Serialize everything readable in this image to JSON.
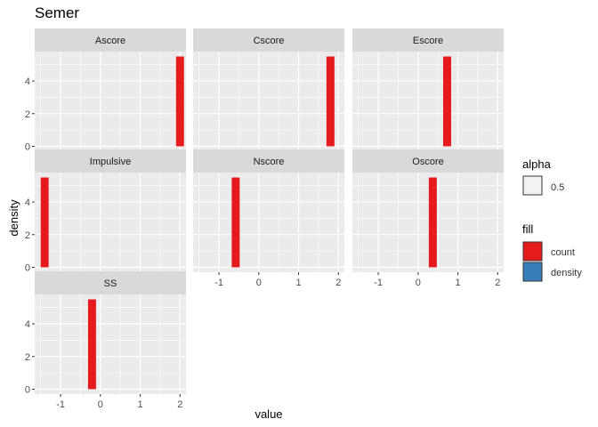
{
  "chart_data": {
    "type": "bar",
    "title": "Semer",
    "xlabel": "value",
    "ylabel": "density",
    "xlim": [
      -1.65,
      2.15
    ],
    "ylim": [
      -0.3,
      5.8
    ],
    "x_ticks": [
      -1,
      0,
      1,
      2
    ],
    "x_tick_labels": [
      "-1",
      "0",
      "1",
      "2"
    ],
    "y_ticks": [
      0,
      2,
      4
    ],
    "y_tick_labels": [
      "0",
      "2",
      "4"
    ],
    "bar_width": 0.2,
    "bar_color": "#E41A1C",
    "panel_background": "#EBEBEB",
    "strip_background": "#D9D9D9",
    "grid": true,
    "facets": [
      {
        "label": "Ascore",
        "x": 2.0,
        "y": 5.5
      },
      {
        "label": "Cscore",
        "x": 1.8,
        "y": 5.5
      },
      {
        "label": "Escore",
        "x": 0.73,
        "y": 5.5
      },
      {
        "label": "Impulsive",
        "x": -1.4,
        "y": 5.5
      },
      {
        "label": "Nscore",
        "x": -0.58,
        "y": 5.5
      },
      {
        "label": "Oscore",
        "x": 0.37,
        "y": 5.5
      },
      {
        "label": "SS",
        "x": -0.21,
        "y": 5.5
      }
    ],
    "legend": {
      "placement": "right",
      "alpha": {
        "title": "alpha",
        "items": [
          {
            "label": "0.5",
            "color": "#F2F2F2"
          }
        ]
      },
      "fill": {
        "title": "fill",
        "items": [
          {
            "label": "count",
            "color": "#E41A1C"
          },
          {
            "label": "density",
            "color": "#377EB8"
          }
        ]
      }
    }
  }
}
